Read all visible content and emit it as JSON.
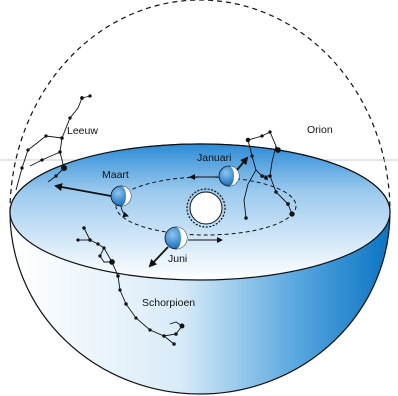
{
  "labels": {
    "leo": "Leeuw",
    "orion": "Orion",
    "march": "Maart",
    "january": "Januari",
    "june": "Juni",
    "scorpius": "Schorpioen"
  },
  "colors": {
    "bowl_dark": "#0a78c8",
    "bowl_light": "#ffffff",
    "disk_light": "#e6f1fb",
    "disk_dark": "#2c8bd6",
    "horizon_line": "#c8c8c8",
    "ink": "#111111"
  },
  "icons": [
    "sun-icon",
    "earth-icon"
  ]
}
